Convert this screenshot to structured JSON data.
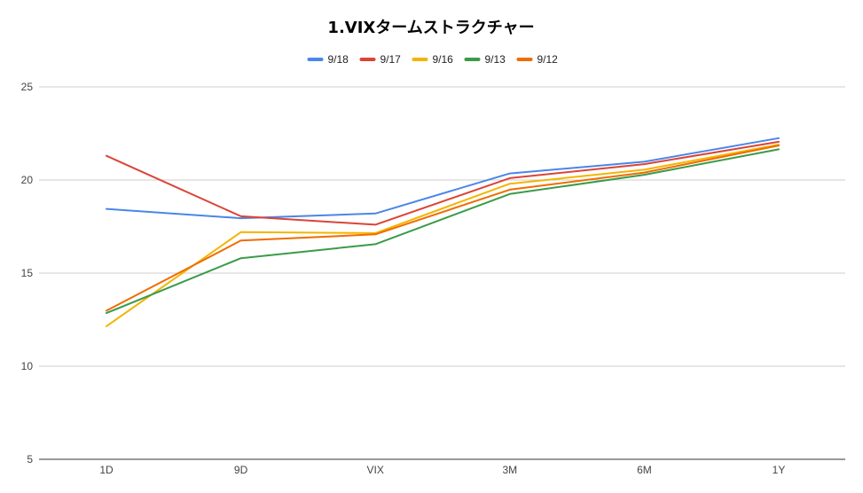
{
  "chart_data": {
    "type": "line",
    "title": "1.VIXタームストラクチャー",
    "xlabel": "",
    "ylabel": "",
    "categories": [
      "1D",
      "9D",
      "VIX",
      "3M",
      "6M",
      "1Y"
    ],
    "ylim": [
      5,
      25
    ],
    "yticks": [
      5,
      10,
      15,
      20,
      25
    ],
    "grid": true,
    "legend_position": "top",
    "series": [
      {
        "name": "9/18",
        "color": "#4a86e8",
        "values": [
          18.45,
          17.95,
          18.2,
          20.35,
          20.98,
          22.25
        ]
      },
      {
        "name": "9/17",
        "color": "#db4437",
        "values": [
          21.3,
          18.05,
          17.6,
          20.1,
          20.85,
          22.05
        ]
      },
      {
        "name": "9/16",
        "color": "#f4b400",
        "values": [
          12.15,
          17.2,
          17.15,
          19.8,
          20.55,
          21.9
        ]
      },
      {
        "name": "9/13",
        "color": "#3a9b4a",
        "values": [
          12.85,
          15.8,
          16.55,
          19.25,
          20.28,
          21.65
        ]
      },
      {
        "name": "9/12",
        "color": "#ef6c00",
        "values": [
          12.98,
          16.75,
          17.08,
          19.48,
          20.4,
          21.85
        ]
      }
    ]
  }
}
